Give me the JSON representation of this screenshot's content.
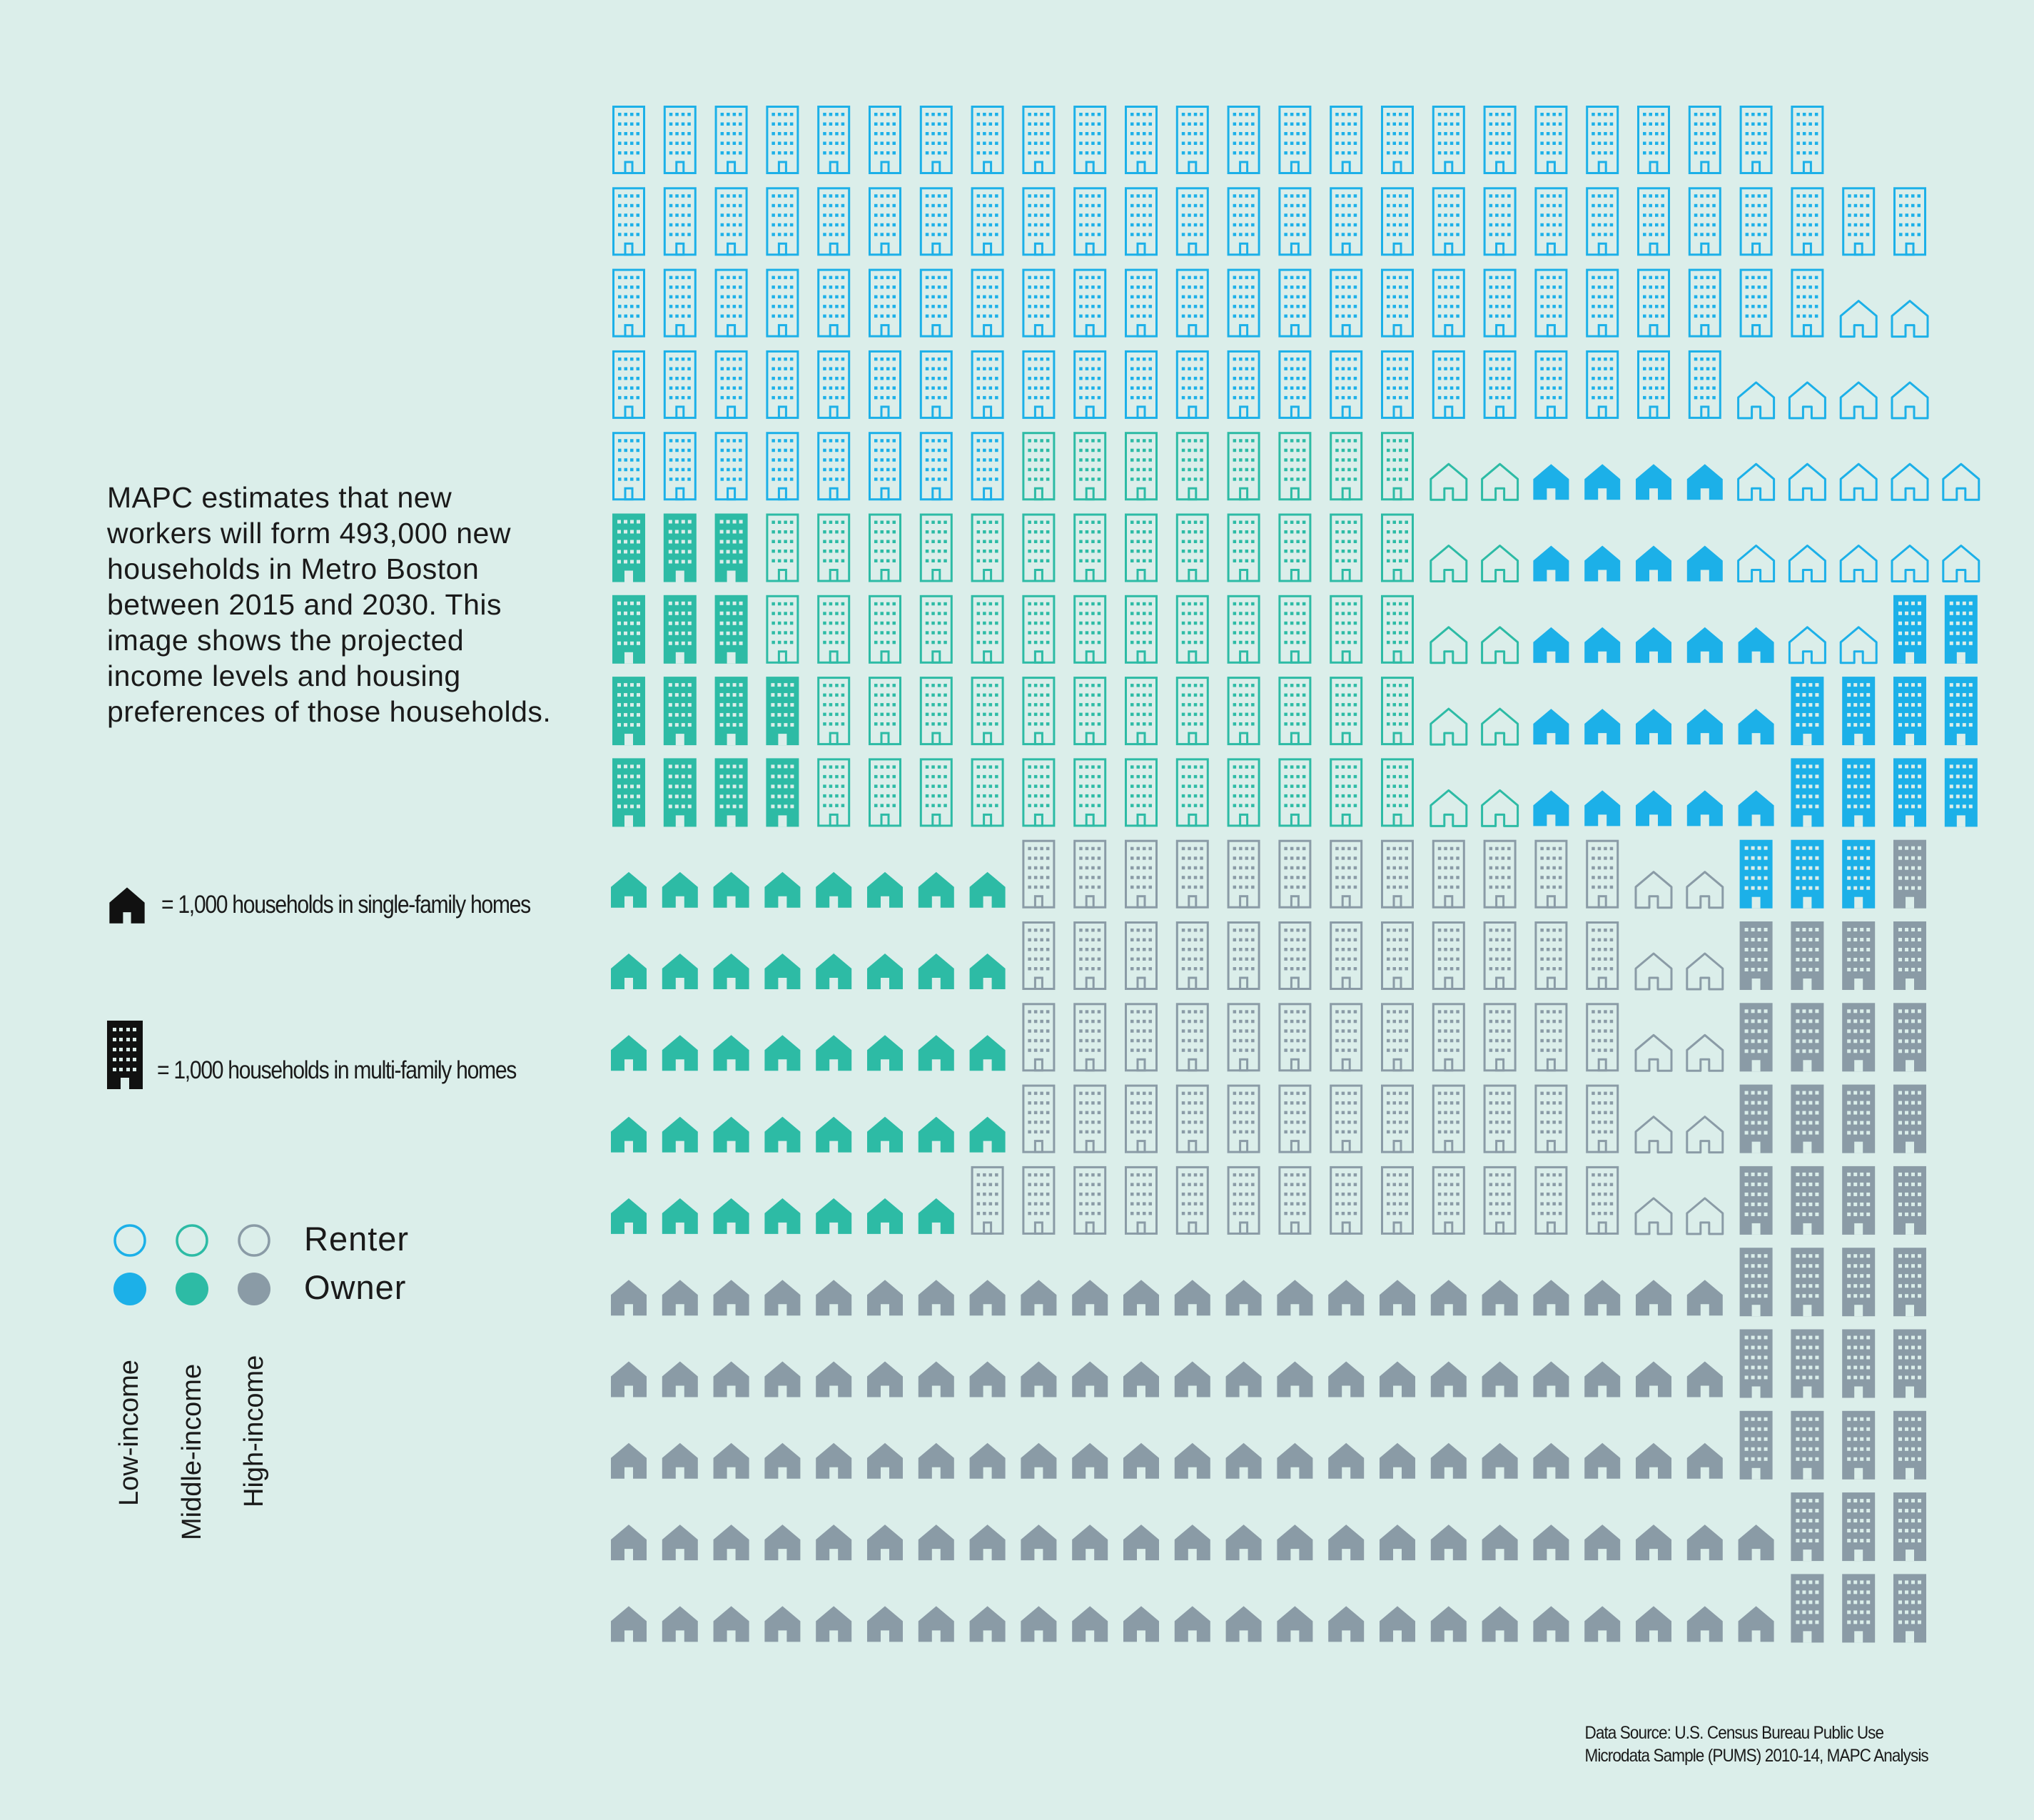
{
  "intro_text": "MAPC estimates that new workers will form 493,000 new households in Metro Boston between 2015 and 2030. This image shows the projected income levels and housing preferences of those households.",
  "legend": {
    "single_family": "= 1,000 households in single-family homes",
    "multi_family": "= 1,000 households in multi-family homes",
    "renter": "Renter",
    "owner": "Owner",
    "low_income": "Low-income",
    "middle_income": "Middle-income",
    "high_income": "High-income"
  },
  "source": {
    "line1": "Data Source: U.S. Census Bureau Public Use",
    "line2": "Microdata Sample (PUMS) 2010-14, MAPC Analysis"
  },
  "colors": {
    "low": "#1cb0e8",
    "middle": "#2dbba5",
    "high": "#8a9ba6",
    "legend_black": "#111111",
    "background": "#dbeeea"
  },
  "chart_data": {
    "type": "pictogram",
    "unit": "1,000 households per icon",
    "total_households": 493000,
    "categories": [
      "Low-income",
      "Middle-income",
      "High-income"
    ],
    "rows": [
      "LBR LBR LBR LBR LBR LBR LBR LBR LBR LBR LBR LBR LBR LBR LBR LBR LBR LBR LBR LBR LBR LBR LBR LBR",
      "LBR LBR LBR LBR LBR LBR LBR LBR LBR LBR LBR LBR LBR LBR LBR LBR LBR LBR LBR LBR LBR LBR LBR LBR LBR LBR",
      "LBR LBR LBR LBR LBR LBR LBR LBR LBR LBR LBR LBR LBR LBR LBR LBR LBR LBR LBR LBR LBR LBR LBR LBR LHR LHR",
      "LBR LBR LBR LBR LBR LBR LBR LBR LBR LBR LBR LBR LBR LBR LBR LBR LBR LBR LBR LBR LBR LBR LHR LHR LHR LHR",
      "LBR LBR LBR LBR LBR LBR LBR LBR MBR MBR MBR MBR MBR MBR MBR MBR MHR MHR LHO LHO LHO LHO LHR LHR LHR LHR LHR",
      "MBO MBO MBO MBR MBR MBR MBR MBR MBR MBR MBR MBR MBR MBR MBR MBR MHR MHR LHO LHO LHO LHO LHR LHR LHR LHR LHR",
      "MBO MBO MBO MBR MBR MBR MBR MBR MBR MBR MBR MBR MBR MBR MBR MBR MHR MHR LHO LHO LHO LHO LHO LHR LHR LBO LBO",
      "MBO MBO MBO MBO MBR MBR MBR MBR MBR MBR MBR MBR MBR MBR MBR MBR MHR MHR LHO LHO LHO LHO LHO LBO LBO LBO LBO",
      "MBO MBO MBO MBO MBR MBR MBR MBR MBR MBR MBR MBR MBR MBR MBR MBR MHR MHR LHO LHO LHO LHO LHO LBO LBO LBO LBO",
      "MHO MHO MHO MHO MHO MHO MHO MHO HBR HBR HBR HBR HBR HBR HBR HBR HBR HBR HBR HBR HHR HHR LBO LBO LBO HBO",
      "MHO MHO MHO MHO MHO MHO MHO MHO HBR HBR HBR HBR HBR HBR HBR HBR HBR HBR HBR HBR HHR HHR HBO HBO HBO HBO",
      "MHO MHO MHO MHO MHO MHO MHO MHO HBR HBR HBR HBR HBR HBR HBR HBR HBR HBR HBR HBR HHR HHR HBO HBO HBO HBO",
      "MHO MHO MHO MHO MHO MHO MHO MHO HBR HBR HBR HBR HBR HBR HBR HBR HBR HBR HBR HBR HHR HHR HBO HBO HBO HBO",
      "MHO MHO MHO MHO MHO MHO MHO HBR HBR HBR HBR HBR HBR HBR HBR HBR HBR HBR HBR HBR HHR HHR HBO HBO HBO HBO",
      "HHO HHO HHO HHO HHO HHO HHO HHO HHO HHO HHO HHO HHO HHO HHO HHO HHO HHO HHO HHO HHO HHO HBO HBO HBO HBO",
      "HHO HHO HHO HHO HHO HHO HHO HHO HHO HHO HHO HHO HHO HHO HHO HHO HHO HHO HHO HHO HHO HHO HBO HBO HBO HBO",
      "HHO HHO HHO HHO HHO HHO HHO HHO HHO HHO HHO HHO HHO HHO HHO HHO HHO HHO HHO HHO HHO HHO HBO HBO HBO HBO",
      "HHO HHO HHO HHO HHO HHO HHO HHO HHO HHO HHO HHO HHO HHO HHO HHO HHO HHO HHO HHO HHO HHO HHO HBO HBO HBO",
      "HHO HHO HHO HHO HHO HHO HHO HHO HHO HHO HHO HHO HHO HHO HHO HHO HHO HHO HHO HHO HHO HHO HHO HBO HBO HBO"
    ],
    "code_key": {
      "income": {
        "L": "Low-income",
        "M": "Middle-income",
        "H": "High-income"
      },
      "home": {
        "H": "single-family",
        "B": "multi-family"
      },
      "tenure": {
        "R": "Renter",
        "O": "Owner"
      }
    }
  }
}
